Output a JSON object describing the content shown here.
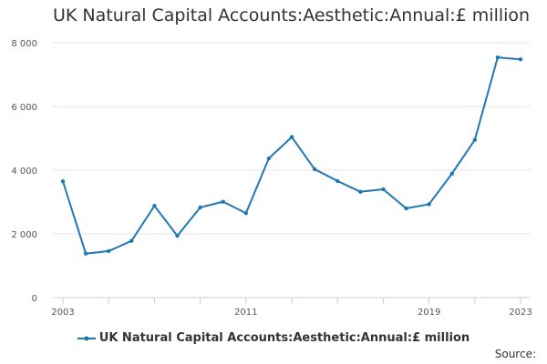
{
  "chart_data": {
    "type": "line",
    "title": "UK Natural Capital Accounts:Aesthetic:Annual:£ million",
    "xlabel": "",
    "ylabel": "",
    "x": [
      2003,
      2004,
      2005,
      2006,
      2007,
      2008,
      2009,
      2010,
      2011,
      2012,
      2013,
      2014,
      2015,
      2016,
      2017,
      2018,
      2019,
      2020,
      2021,
      2022,
      2023
    ],
    "x_tick_labels": [
      "2003",
      "2011",
      "2019",
      "2023"
    ],
    "y_tick_labels": [
      "0",
      "2 000",
      "4 000",
      "6 000",
      "8 000"
    ],
    "ylim": [
      0,
      8000
    ],
    "xlim": [
      2003,
      2023
    ],
    "series": [
      {
        "name": "UK Natural Capital Accounts:Aesthetic:Annual:£ million",
        "color": "#1f77b4",
        "values": [
          3650,
          1380,
          1460,
          1780,
          2880,
          1940,
          2830,
          3010,
          2650,
          4370,
          5040,
          4030,
          3660,
          3320,
          3400,
          2800,
          2930,
          3890,
          4950,
          7540,
          7480
        ]
      }
    ],
    "grid": "horizontal",
    "legend_position": "bottom"
  },
  "footer": {
    "source_label": "Source:"
  }
}
